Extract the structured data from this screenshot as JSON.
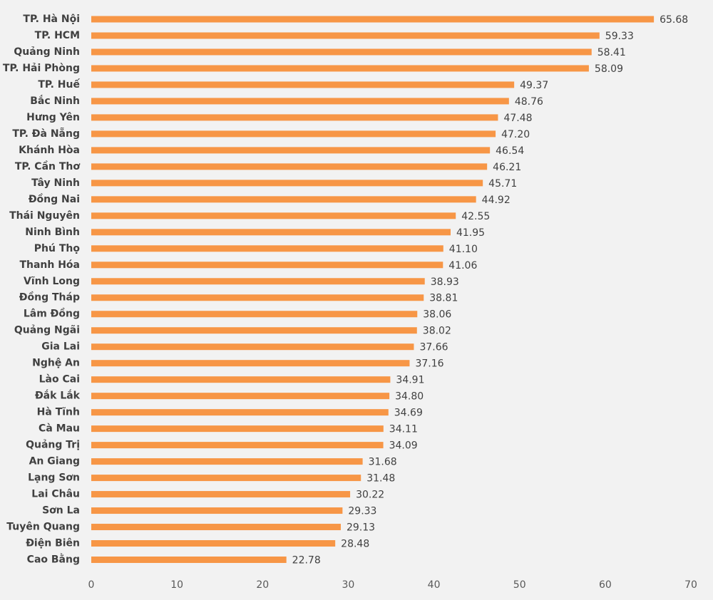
{
  "chart_data": {
    "type": "bar",
    "orientation": "horizontal",
    "categories": [
      "TP. Hà Nội",
      "TP. HCM",
      "Quảng Ninh",
      "TP. Hải Phòng",
      "TP. Huế",
      "Bắc Ninh",
      "Hưng Yên",
      "TP. Đà Nẵng",
      "Khánh Hòa",
      "TP. Cần Thơ",
      "Tây Ninh",
      "Đồng Nai",
      "Thái Nguyên",
      "Ninh Bình",
      "Phú Thọ",
      "Thanh Hóa",
      "Vĩnh Long",
      "Đồng Tháp",
      "Lâm Đồng",
      "Quảng Ngãi",
      "Gia Lai",
      "Nghệ An",
      "Lào Cai",
      "Đắk Lắk",
      "Hà Tĩnh",
      "Cà Mau",
      "Quảng Trị",
      "An Giang",
      "Lạng Sơn",
      "Lai Châu",
      "Sơn La",
      "Tuyên Quang",
      "Điện Biên",
      "Cao Bằng"
    ],
    "values": [
      65.68,
      59.33,
      58.41,
      58.09,
      49.37,
      48.76,
      47.48,
      47.2,
      46.54,
      46.21,
      45.71,
      44.92,
      42.55,
      41.95,
      41.1,
      41.06,
      38.93,
      38.81,
      38.06,
      38.02,
      37.66,
      37.16,
      34.91,
      34.8,
      34.69,
      34.11,
      34.09,
      31.68,
      31.48,
      30.22,
      29.33,
      29.13,
      28.48,
      22.78
    ],
    "value_labels": [
      "65.68",
      "59.33",
      "58.41",
      "58.09",
      "49.37",
      "48.76",
      "47.48",
      "47.20",
      "46.54",
      "46.21",
      "45.71",
      "44.92",
      "42.55",
      "41.95",
      "41.10",
      "41.06",
      "38.93",
      "38.81",
      "38.06",
      "38.02",
      "37.66",
      "37.16",
      "34.91",
      "34.80",
      "34.69",
      "34.11",
      "34.09",
      "31.68",
      "31.48",
      "30.22",
      "29.33",
      "29.13",
      "28.48",
      "22.78"
    ],
    "color": "#f79646",
    "xlim": [
      0,
      70
    ],
    "xticks": [
      0,
      10,
      20,
      30,
      40,
      50,
      60,
      70
    ],
    "grid": false
  }
}
